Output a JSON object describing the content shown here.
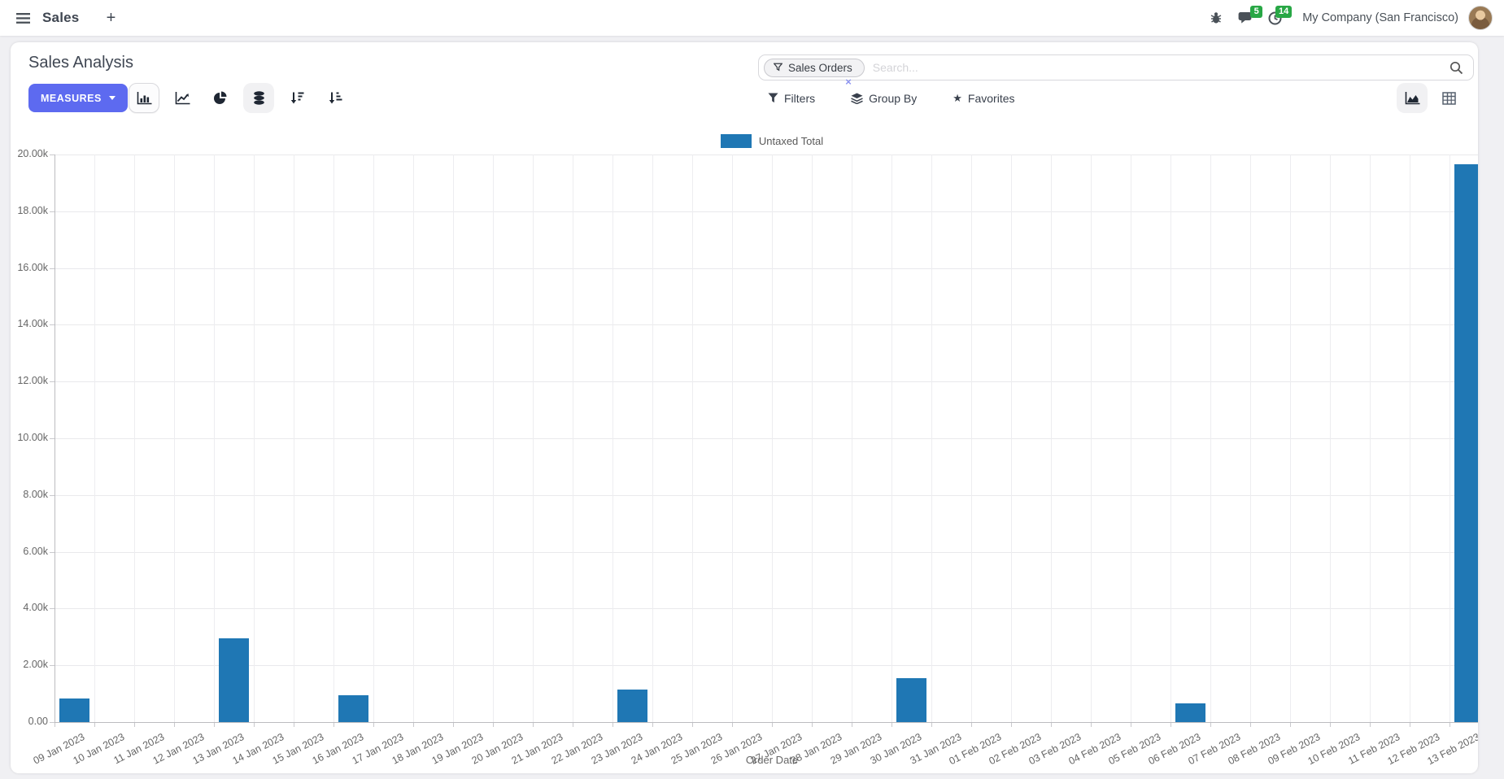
{
  "navbar": {
    "app_name": "Sales",
    "plus": "+",
    "message_count": "5",
    "activity_count": "14",
    "company": "My Company (San Francisco)"
  },
  "control_panel": {
    "title": "Sales Analysis",
    "measures_button": "MEASURES",
    "search": {
      "facet_label": "Sales Orders",
      "facet_remove": "×",
      "placeholder": "Search..."
    },
    "filter_menus": {
      "filters": "Filters",
      "group_by": "Group By",
      "favorites": "Favorites"
    }
  },
  "chart_data": {
    "type": "bar",
    "title": "",
    "xlabel": "Order Date",
    "ylabel": "",
    "ylim": [
      0,
      20000
    ],
    "ytick_step": 2000,
    "ytick_labels": [
      "0.00",
      "2.00k",
      "4.00k",
      "6.00k",
      "8.00k",
      "10.00k",
      "12.00k",
      "14.00k",
      "16.00k",
      "18.00k",
      "20.00k"
    ],
    "grid": true,
    "legend_position": "top",
    "categories": [
      "09 Jan 2023",
      "10 Jan 2023",
      "11 Jan 2023",
      "12 Jan 2023",
      "13 Jan 2023",
      "14 Jan 2023",
      "15 Jan 2023",
      "16 Jan 2023",
      "17 Jan 2023",
      "18 Jan 2023",
      "19 Jan 2023",
      "20 Jan 2023",
      "21 Jan 2023",
      "22 Jan 2023",
      "23 Jan 2023",
      "24 Jan 2023",
      "25 Jan 2023",
      "26 Jan 2023",
      "27 Jan 2023",
      "28 Jan 2023",
      "29 Jan 2023",
      "30 Jan 2023",
      "31 Jan 2023",
      "01 Feb 2023",
      "02 Feb 2023",
      "03 Feb 2023",
      "04 Feb 2023",
      "05 Feb 2023",
      "06 Feb 2023",
      "07 Feb 2023",
      "08 Feb 2023",
      "09 Feb 2023",
      "10 Feb 2023",
      "11 Feb 2023",
      "12 Feb 2023",
      "13 Feb 2023"
    ],
    "series": [
      {
        "name": "Untaxed Total",
        "color": "#1f77b4",
        "values": [
          840,
          0,
          0,
          0,
          2950,
          0,
          0,
          950,
          0,
          0,
          0,
          0,
          0,
          0,
          1150,
          0,
          0,
          0,
          0,
          0,
          0,
          1550,
          0,
          0,
          0,
          0,
          0,
          0,
          650,
          0,
          0,
          0,
          0,
          0,
          0,
          19650
        ]
      }
    ]
  },
  "colors": {
    "accent": "#5d6af0",
    "bar": "#1f77b4",
    "badge": "#28a745",
    "page_bg": "#f0f0f3"
  }
}
